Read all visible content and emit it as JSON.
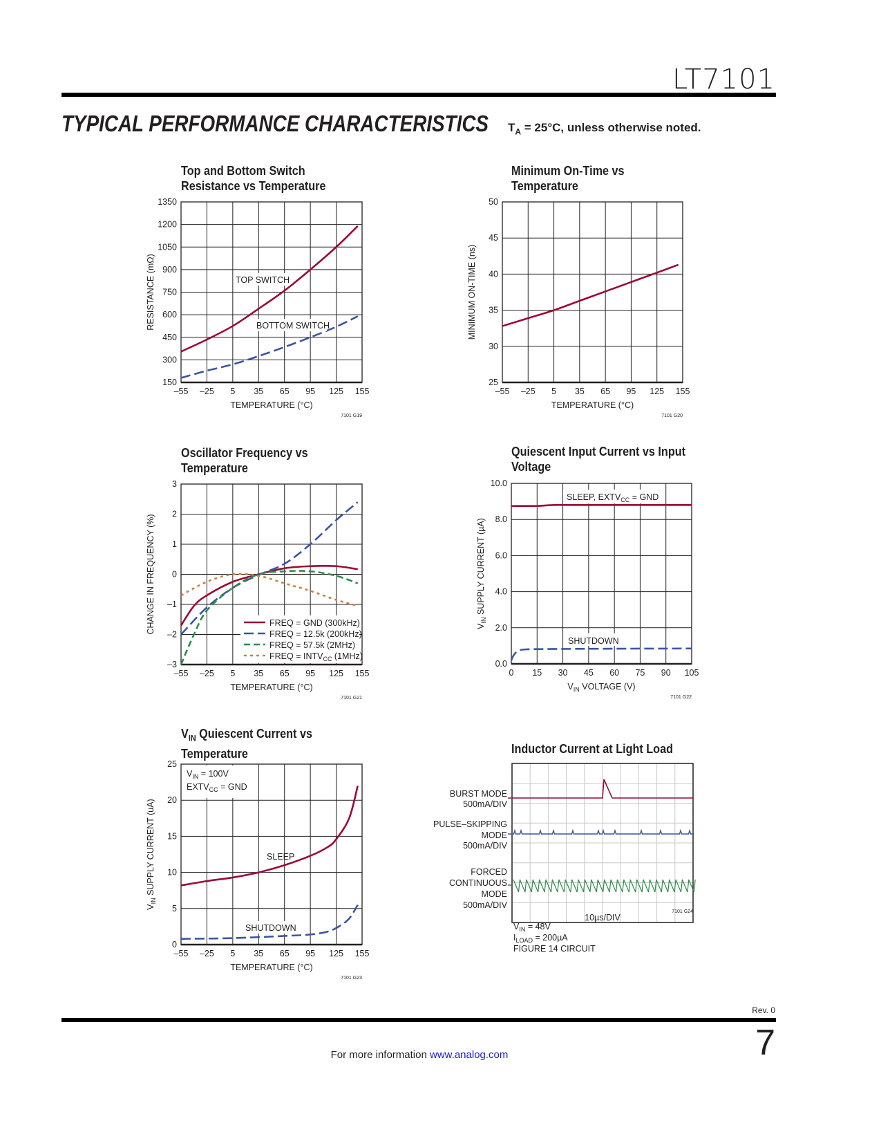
{
  "header": {
    "part_number": "LT7101",
    "section_title": "TYPICAL PERFORMANCE CHARACTERISTICS",
    "conditions_pre": "T",
    "conditions_sub": "A",
    "conditions_post": " = 25°C, unless otherwise noted."
  },
  "footer": {
    "revision": "Rev. 0",
    "page_number": "7",
    "info_text": "For more information ",
    "link": "www.analog.com"
  },
  "colors": {
    "red": "#9b0a33",
    "blue": "#3a55a4",
    "green": "#2e8b4a",
    "orange": "#c8813f",
    "grid": "#231f20"
  },
  "chart_data": [
    {
      "type": "line",
      "code": "7101 G19",
      "title": [
        "Top and Bottom Switch",
        "Resistance vs Temperature"
      ],
      "xlabel": [
        {
          "t": "TEMPERATURE (°C)"
        }
      ],
      "ylabel": [
        {
          "t": "RESISTANCE (mΩ)"
        }
      ],
      "xlim": [
        -55,
        155
      ],
      "ylim": [
        150,
        1350
      ],
      "xticks": [
        -55,
        -25,
        5,
        35,
        65,
        95,
        125,
        155
      ],
      "yticks": [
        150,
        300,
        450,
        600,
        750,
        900,
        1050,
        1200,
        1350
      ],
      "grid": true,
      "annotations": [
        "TOP SWITCH",
        "BOTTOM SWITCH"
      ],
      "series": [
        {
          "name": "TOP SWITCH",
          "style": "solid",
          "color": "#9b0a33",
          "x": [
            -55,
            -25,
            5,
            35,
            65,
            95,
            125,
            150
          ],
          "y": [
            355,
            435,
            525,
            640,
            760,
            900,
            1050,
            1190
          ]
        },
        {
          "name": "BOTTOM SWITCH",
          "style": "dash",
          "color": "#3a55a4",
          "x": [
            -55,
            -25,
            5,
            35,
            65,
            95,
            125,
            150
          ],
          "y": [
            180,
            228,
            270,
            325,
            385,
            450,
            520,
            590
          ]
        }
      ]
    },
    {
      "type": "line",
      "code": "7101 G20",
      "title": [
        "Minimum On-Time vs",
        "Temperature"
      ],
      "xlabel": [
        {
          "t": "TEMPERATURE (°C)"
        }
      ],
      "ylabel": [
        {
          "t": "MINIMUM ON-TIME (ns)"
        }
      ],
      "xlim": [
        -55,
        155
      ],
      "ylim": [
        25,
        50
      ],
      "xticks": [
        -55,
        -25,
        5,
        35,
        65,
        95,
        125,
        155
      ],
      "yticks": [
        25,
        30,
        35,
        40,
        45,
        50
      ],
      "grid": true,
      "annotations": [],
      "series": [
        {
          "style": "solid",
          "color": "#9b0a33",
          "x": [
            -55,
            -25,
            5,
            35,
            65,
            95,
            125,
            150
          ],
          "y": [
            32.8,
            33.9,
            35.0,
            36.3,
            37.6,
            38.9,
            40.2,
            41.3
          ]
        }
      ]
    },
    {
      "type": "line",
      "code": "7101 G21",
      "title": [
        "Oscillator Frequency vs",
        "Temperature"
      ],
      "xlabel": [
        {
          "t": "TEMPERATURE (°C)"
        }
      ],
      "ylabel": [
        {
          "t": "CHANGE IN FREQUENCY (%)"
        }
      ],
      "xlim": [
        -55,
        155
      ],
      "ylim": [
        -3,
        3
      ],
      "xticks": [
        -55,
        -25,
        5,
        35,
        65,
        95,
        125,
        155
      ],
      "yticks": [
        -3,
        -2,
        -1,
        0,
        1,
        2,
        3
      ],
      "grid": true,
      "annotations": [],
      "legend": "bottom-right",
      "series": [
        {
          "name": [
            {
              "t": "FREQ = GND (300kHz)"
            }
          ],
          "style": "solid",
          "color": "#9b0a33",
          "x": [
            -55,
            -40,
            -25,
            5,
            35,
            65,
            95,
            125,
            150
          ],
          "y": [
            -1.7,
            -1.05,
            -0.7,
            -0.25,
            0,
            0.2,
            0.27,
            0.27,
            0.17
          ]
        },
        {
          "name": [
            {
              "t": "FREQ = 12.5k (200kHz)"
            }
          ],
          "style": "dash",
          "color": "#3a55a4",
          "x": [
            -55,
            -25,
            5,
            35,
            65,
            95,
            125,
            150
          ],
          "y": [
            -2,
            -1.1,
            -0.45,
            -0.02,
            0.35,
            1.0,
            1.8,
            2.4
          ]
        },
        {
          "name": [
            {
              "t": "FREQ = 57.5k (2MHz)"
            }
          ],
          "style": "shortdash",
          "color": "#2e8b4a",
          "x": [
            -55,
            -40,
            -25,
            5,
            35,
            65,
            95,
            125,
            150
          ],
          "y": [
            -3,
            -2,
            -1.2,
            -0.45,
            0,
            0.1,
            0.1,
            -0.05,
            -0.3
          ]
        },
        {
          "name": [
            {
              "t": "FREQ = INTV"
            },
            {
              "t": "CC",
              "sub": true
            },
            {
              "t": " (1MHz)"
            }
          ],
          "style": "dot",
          "color": "#c8813f",
          "x": [
            -55,
            -25,
            5,
            35,
            65,
            95,
            125,
            150
          ],
          "y": [
            -0.7,
            -0.25,
            0,
            -0.05,
            -0.3,
            -0.55,
            -0.85,
            -1.05
          ]
        }
      ]
    },
    {
      "type": "line",
      "code": "7101 G22",
      "title": [
        "Quiescent Input Current vs Input",
        "Voltage"
      ],
      "xlabel": [
        {
          "t": "V"
        },
        {
          "t": "IN",
          "sub": true
        },
        {
          "t": " VOLTAGE (V)"
        }
      ],
      "ylabel": [
        {
          "t": "V"
        },
        {
          "t": "IN",
          "sub": true
        },
        {
          "t": " SUPPLY CURRENT (µA)"
        }
      ],
      "xlim": [
        0,
        105
      ],
      "ylim": [
        0,
        10
      ],
      "xticks": [
        0,
        15,
        30,
        45,
        60,
        75,
        90,
        105
      ],
      "yticks": [
        0,
        2,
        4,
        6,
        8,
        10
      ],
      "ytick_labels": [
        "0.0",
        "2.0",
        "4.0",
        "6.0",
        "8.0",
        "10.0"
      ],
      "grid": true,
      "annotations": [
        [
          {
            "t": "SLEEP, EXTV"
          },
          {
            "t": "CC",
            "sub": true
          },
          {
            "t": " = GND"
          }
        ],
        [
          {
            "t": "SHUTDOWN"
          }
        ]
      ],
      "series": [
        {
          "name": "SLEEP",
          "style": "solid",
          "color": "#9b0a33",
          "x": [
            0,
            15,
            25,
            40,
            105
          ],
          "y": [
            8.75,
            8.75,
            8.8,
            8.8,
            8.8
          ]
        },
        {
          "name": "SHUTDOWN",
          "style": "dash",
          "color": "#3a55a4",
          "x": [
            0,
            1.5,
            4,
            8,
            20,
            60,
            105
          ],
          "y": [
            0.2,
            0.5,
            0.72,
            0.8,
            0.82,
            0.84,
            0.85
          ]
        }
      ]
    },
    {
      "type": "line",
      "code": "7101 G23",
      "title": [
        [
          {
            "t": "V"
          },
          {
            "t": "IN",
            "sub": true
          },
          {
            "t": " Quiescent Current vs"
          }
        ],
        "Temperature"
      ],
      "xlabel": [
        {
          "t": "TEMPERATURE (°C)"
        }
      ],
      "ylabel": [
        {
          "t": "V"
        },
        {
          "t": "IN",
          "sub": true
        },
        {
          "t": " SUPPLY CURRENT (uA)"
        }
      ],
      "xlim": [
        -55,
        155
      ],
      "ylim": [
        0,
        25
      ],
      "xticks": [
        -55,
        -25,
        5,
        35,
        65,
        95,
        125,
        155
      ],
      "yticks": [
        0,
        5,
        10,
        15,
        20,
        25
      ],
      "grid": true,
      "annotations": [
        [
          {
            "t": "V"
          },
          {
            "t": "IN",
            "sub": true
          },
          {
            "t": " = 100V"
          }
        ],
        [
          {
            "t": "EXTV"
          },
          {
            "t": "CC",
            "sub": true
          },
          {
            "t": " = GND"
          }
        ],
        [
          {
            "t": "SLEEP"
          }
        ],
        [
          {
            "t": "SHUTDOWN"
          }
        ]
      ],
      "series": [
        {
          "name": "SLEEP",
          "style": "solid",
          "color": "#9b0a33",
          "x": [
            -55,
            -25,
            5,
            35,
            65,
            95,
            115,
            125,
            140,
            150
          ],
          "y": [
            8.2,
            8.8,
            9.3,
            10,
            11,
            12.3,
            13.5,
            14.6,
            17.5,
            22
          ]
        },
        {
          "name": "SHUTDOWN",
          "style": "dash",
          "color": "#3a55a4",
          "x": [
            -55,
            5,
            65,
            95,
            115,
            128,
            140,
            150
          ],
          "y": [
            0.8,
            0.9,
            1.2,
            1.4,
            1.8,
            2.5,
            3.6,
            5.5
          ]
        }
      ]
    },
    {
      "type": "oscilloscope",
      "code": "7101 G24",
      "title": [
        "Inductor Current at Light Load"
      ],
      "xlabel": [
        {
          "t": "10µs/DIV"
        }
      ],
      "traces": [
        {
          "label": [
            "BURST MODE",
            "500mA/DIV"
          ],
          "color": "#9b0a33"
        },
        {
          "label": [
            "PULSE–SKIPPING",
            "MODE",
            "500mA/DIV"
          ],
          "color": "#3a55a4"
        },
        {
          "label": [
            "FORCED",
            "CONTINUOUS",
            "MODE",
            "500mA/DIV"
          ],
          "color": "#2e8b4a"
        }
      ],
      "conditions": [
        [
          {
            "t": "V"
          },
          {
            "t": "IN",
            "sub": true
          },
          {
            "t": " = 48V"
          }
        ],
        [
          {
            "t": "I"
          },
          {
            "t": "LOAD",
            "sub": true
          },
          {
            "t": " = 200µA"
          }
        ],
        [
          {
            "t": "FIGURE 14 CIRCUIT"
          }
        ]
      ]
    }
  ]
}
